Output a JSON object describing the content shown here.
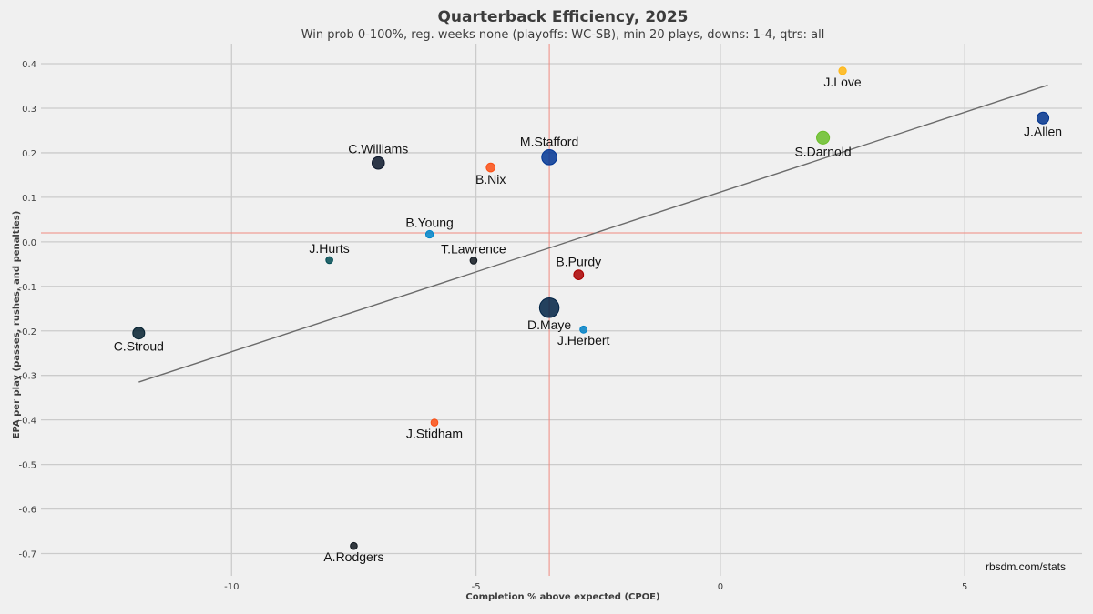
{
  "chart_data": {
    "type": "scatter",
    "title": "Quarterback Efficiency, 2025",
    "subtitle": "Win prob 0-100%, reg. weeks none (playoffs: WC-SB), min 20 plays, downs: 1-4, qtrs: all",
    "xlabel": "Completion % above expected (CPOE)",
    "ylabel": "EPA per play (passes, rushes, and penalties)",
    "xlim": [
      -13.9,
      7.4
    ],
    "ylim": [
      -0.75,
      0.445
    ],
    "x_ticks": [
      -10,
      -5,
      0,
      5
    ],
    "x_tick_labels": [
      "-10",
      "-5",
      "0",
      "5"
    ],
    "y_ticks": [
      0.4,
      0.3,
      0.2,
      0.1,
      0.0,
      -0.1,
      -0.2,
      -0.3,
      -0.4,
      -0.5,
      -0.6,
      -0.7
    ],
    "y_tick_labels": [
      "0.4",
      "0.3",
      "0.2",
      "0.1",
      "0.0",
      "-0.1",
      "-0.2",
      "-0.3",
      "-0.4",
      "-0.5",
      "-0.6",
      "-0.7"
    ],
    "grid": true,
    "mean_x": -3.5,
    "mean_y": 0.02,
    "trendline": {
      "x": [
        -11.9,
        6.7
      ],
      "y": [
        -0.315,
        0.352
      ]
    },
    "credit": "rbsdm.com/stats",
    "points": [
      {
        "name": "J.Love",
        "x": 2.5,
        "y": 0.384,
        "plays": 45,
        "color": "#FFB612",
        "label_pos": "below"
      },
      {
        "name": "J.Allen",
        "x": 6.6,
        "y": 0.278,
        "plays": 110,
        "color": "#00338D",
        "label_pos": "below"
      },
      {
        "name": "S.Darnold",
        "x": 2.1,
        "y": 0.234,
        "plays": 130,
        "color": "#69BE28",
        "label_pos": "below"
      },
      {
        "name": "M.Stafford",
        "x": -3.5,
        "y": 0.19,
        "plays": 180,
        "color": "#003594",
        "label_pos": "above"
      },
      {
        "name": "C.Williams",
        "x": -7.0,
        "y": 0.177,
        "plays": 120,
        "color": "#0B162A",
        "label_pos": "above"
      },
      {
        "name": "B.Nix",
        "x": -4.7,
        "y": 0.167,
        "plays": 60,
        "color": "#FB4F14",
        "label_pos": "below"
      },
      {
        "name": "B.Young",
        "x": -5.95,
        "y": 0.017,
        "plays": 45,
        "color": "#0085CA",
        "label_pos": "above"
      },
      {
        "name": "J.Hurts",
        "x": -8.0,
        "y": -0.041,
        "plays": 35,
        "color": "#004C54",
        "label_pos": "above"
      },
      {
        "name": "T.Lawrence",
        "x": -5.05,
        "y": -0.042,
        "plays": 35,
        "color": "#101820",
        "label_pos": "above"
      },
      {
        "name": "B.Purdy",
        "x": -2.9,
        "y": -0.074,
        "plays": 75,
        "color": "#AA0000",
        "label_pos": "above"
      },
      {
        "name": "D.Maye",
        "x": -3.5,
        "y": -0.148,
        "plays": 300,
        "color": "#002244",
        "label_pos": "below"
      },
      {
        "name": "J.Herbert",
        "x": -2.8,
        "y": -0.197,
        "plays": 40,
        "color": "#0080C6",
        "label_pos": "below"
      },
      {
        "name": "C.Stroud",
        "x": -11.9,
        "y": -0.205,
        "plays": 110,
        "color": "#03202F",
        "label_pos": "below"
      },
      {
        "name": "J.Stidham",
        "x": -5.85,
        "y": -0.406,
        "plays": 30,
        "color": "#FB4F14",
        "label_pos": "below"
      },
      {
        "name": "A.Rodgers",
        "x": -7.5,
        "y": -0.683,
        "plays": 30,
        "color": "#101820",
        "label_pos": "below"
      }
    ]
  }
}
